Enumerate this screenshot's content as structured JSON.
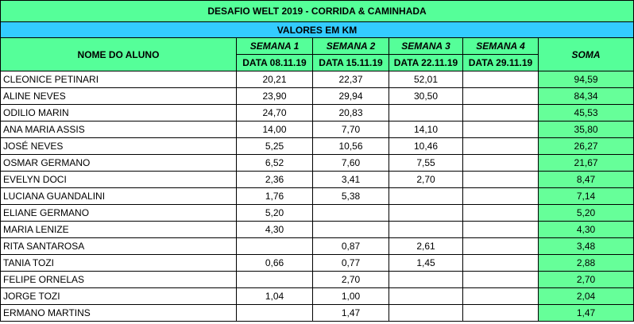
{
  "title": "DESAFIO WELT 2019 - CORRIDA & CAMINHADA",
  "subtitle": "VALORES EM KM",
  "headers": {
    "name": "NOME DO ALUNO",
    "weeks": [
      {
        "label": "SEMANA 1",
        "date": "DATA 08.11.19"
      },
      {
        "label": "SEMANA 2",
        "date": "DATA 15.11.19"
      },
      {
        "label": "SEMANA 3",
        "date": "DATA 22.11.19"
      },
      {
        "label": "SEMANA 4",
        "date": "DATA 29.11.19"
      }
    ],
    "total": "SOMA"
  },
  "rows": [
    {
      "name": "CLEONICE PETINARI",
      "w1": "20,21",
      "w2": "22,37",
      "w3": "52,01",
      "w4": "",
      "total": "94,59"
    },
    {
      "name": "ALINE NEVES",
      "w1": "23,90",
      "w2": "29,94",
      "w3": "30,50",
      "w4": "",
      "total": "84,34"
    },
    {
      "name": "ODILIO MARIN",
      "w1": "24,70",
      "w2": "20,83",
      "w3": "",
      "w4": "",
      "total": "45,53"
    },
    {
      "name": "ANA MARIA ASSIS",
      "w1": "14,00",
      "w2": "7,70",
      "w3": "14,10",
      "w4": "",
      "total": "35,80"
    },
    {
      "name": "JOSÉ NEVES",
      "w1": "5,25",
      "w2": "10,56",
      "w3": "10,46",
      "w4": "",
      "total": "26,27"
    },
    {
      "name": "OSMAR GERMANO",
      "w1": "6,52",
      "w2": "7,60",
      "w3": "7,55",
      "w4": "",
      "total": "21,67"
    },
    {
      "name": "EVELYN DOCI",
      "w1": "2,36",
      "w2": "3,41",
      "w3": "2,70",
      "w4": "",
      "total": "8,47"
    },
    {
      "name": "LUCIANA GUANDALINI",
      "w1": "1,76",
      "w2": "5,38",
      "w3": "",
      "w4": "",
      "total": "7,14"
    },
    {
      "name": "ELIANE GERMANO",
      "w1": "5,20",
      "w2": "",
      "w3": "",
      "w4": "",
      "total": "5,20"
    },
    {
      "name": "MARIA LENIZE",
      "w1": "4,30",
      "w2": "",
      "w3": "",
      "w4": "",
      "total": "4,30"
    },
    {
      "name": "RITA SANTAROSA",
      "w1": "",
      "w2": "0,87",
      "w3": "2,61",
      "w4": "",
      "total": "3,48"
    },
    {
      "name": "TANIA TOZI",
      "w1": "0,66",
      "w2": "0,77",
      "w3": "1,45",
      "w4": "",
      "total": "2,88"
    },
    {
      "name": "FELIPE ORNELAS",
      "w1": "",
      "w2": "2,70",
      "w3": "",
      "w4": "",
      "total": "2,70"
    },
    {
      "name": "JORGE TOZI",
      "w1": "1,04",
      "w2": "1,00",
      "w3": "",
      "w4": "",
      "total": "2,04"
    },
    {
      "name": "ERMANO MARTINS",
      "w1": "",
      "w2": "1,47",
      "w3": "",
      "w4": "",
      "total": "1,47"
    }
  ]
}
